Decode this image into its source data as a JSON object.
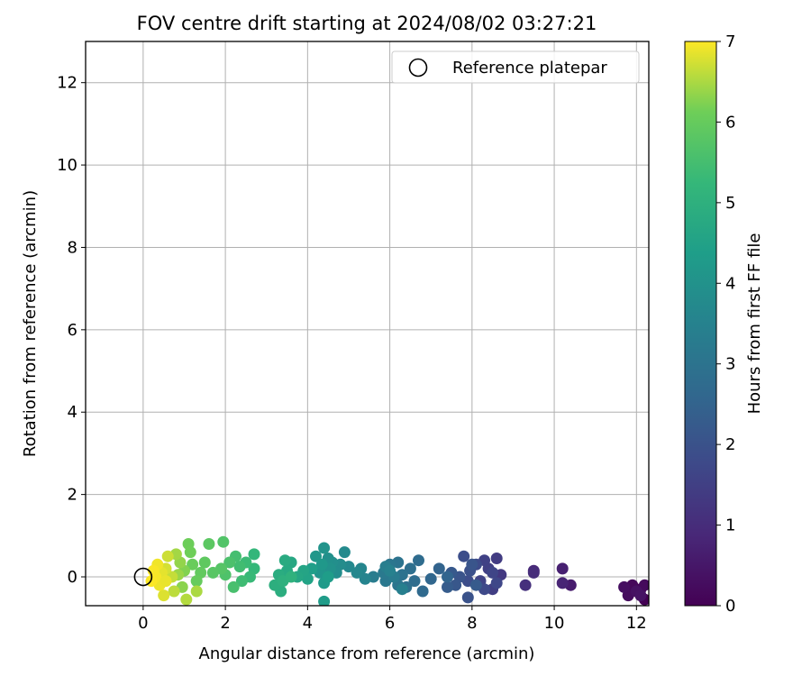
{
  "chart_data": {
    "type": "scatter",
    "title": "FOV centre drift starting at 2024/08/02 03:27:21",
    "xlabel": "Angular distance from reference (arcmin)",
    "ylabel": "Rotation from reference (arcmin)",
    "xlim": [
      -1.4,
      12.3
    ],
    "ylim": [
      -0.7,
      13.0
    ],
    "xticks": [
      "0",
      "2",
      "4",
      "6",
      "8",
      "10",
      "12"
    ],
    "yticks": [
      "0",
      "2",
      "4",
      "6",
      "8",
      "10",
      "12"
    ],
    "grid": true,
    "legend": {
      "placement": "top-right",
      "entries": [
        "Reference platepar"
      ]
    },
    "reference_point": {
      "x": 0,
      "y": 0
    },
    "colorbar": {
      "label": "Hours from first FF file",
      "colormap": "viridis",
      "range": [
        0,
        7
      ],
      "ticks": [
        "0",
        "1",
        "2",
        "3",
        "4",
        "5",
        "6",
        "7"
      ]
    },
    "points": [
      [
        12.2,
        -0.55,
        0.0
      ],
      [
        12.1,
        -0.3,
        0.1
      ],
      [
        11.9,
        -0.2,
        0.15
      ],
      [
        12.2,
        -0.2,
        0.2
      ],
      [
        11.8,
        -0.45,
        0.25
      ],
      [
        11.7,
        -0.25,
        0.3
      ],
      [
        12.0,
        -0.35,
        0.35
      ],
      [
        12.1,
        -0.45,
        0.4
      ],
      [
        10.4,
        -0.2,
        0.6
      ],
      [
        10.2,
        0.2,
        0.7
      ],
      [
        10.2,
        -0.15,
        0.8
      ],
      [
        9.5,
        0.15,
        0.9
      ],
      [
        9.5,
        0.1,
        1.0
      ],
      [
        9.3,
        -0.2,
        1.1
      ],
      [
        8.7,
        0.05,
        1.3
      ],
      [
        8.6,
        0.45,
        1.4
      ],
      [
        8.5,
        -0.3,
        1.45
      ],
      [
        8.4,
        0.2,
        1.5
      ],
      [
        8.3,
        0.4,
        1.55
      ],
      [
        8.2,
        -0.1,
        1.6
      ],
      [
        8.5,
        0.1,
        1.65
      ],
      [
        8.6,
        -0.15,
        1.7
      ],
      [
        8.3,
        -0.3,
        1.75
      ],
      [
        8.1,
        0.3,
        1.8
      ],
      [
        7.9,
        -0.1,
        1.85
      ],
      [
        7.8,
        0.5,
        1.9
      ],
      [
        7.95,
        0.15,
        1.95
      ],
      [
        7.9,
        -0.5,
        2.0
      ],
      [
        7.7,
        0.0,
        2.05
      ],
      [
        8.0,
        0.3,
        2.1
      ],
      [
        7.6,
        -0.2,
        2.15
      ],
      [
        7.5,
        0.1,
        2.2
      ],
      [
        8.1,
        -0.2,
        2.25
      ],
      [
        7.4,
        -0.25,
        2.3
      ],
      [
        7.2,
        0.2,
        2.5
      ],
      [
        7.4,
        0.0,
        2.55
      ],
      [
        7.0,
        -0.05,
        2.6
      ],
      [
        6.8,
        -0.35,
        2.7
      ],
      [
        6.7,
        0.4,
        2.75
      ],
      [
        6.6,
        -0.1,
        2.8
      ],
      [
        6.5,
        0.2,
        2.85
      ],
      [
        6.4,
        -0.25,
        2.9
      ],
      [
        6.3,
        0.05,
        2.95
      ],
      [
        6.2,
        0.35,
        3.0
      ],
      [
        6.2,
        -0.2,
        3.05
      ],
      [
        6.0,
        0.3,
        3.1
      ],
      [
        5.9,
        -0.1,
        3.15
      ],
      [
        5.85,
        0.1,
        3.2
      ],
      [
        6.1,
        0.0,
        3.25
      ],
      [
        5.6,
        0.0,
        3.3
      ],
      [
        5.9,
        0.25,
        3.35
      ],
      [
        6.3,
        -0.3,
        3.4
      ],
      [
        6.0,
        0.15,
        3.45
      ],
      [
        5.4,
        -0.05,
        3.55
      ],
      [
        5.3,
        0.2,
        3.6
      ],
      [
        5.2,
        0.1,
        3.65
      ],
      [
        5.0,
        0.25,
        3.7
      ],
      [
        4.9,
        0.6,
        3.75
      ],
      [
        4.8,
        0.3,
        3.8
      ],
      [
        4.7,
        0.1,
        3.85
      ],
      [
        4.6,
        0.35,
        3.9
      ],
      [
        4.5,
        0.45,
        3.95
      ],
      [
        4.55,
        0.2,
        4.0
      ],
      [
        4.4,
        0.7,
        4.05
      ],
      [
        4.3,
        0.1,
        4.1
      ],
      [
        4.2,
        0.5,
        4.15
      ],
      [
        4.35,
        0.3,
        4.2
      ],
      [
        4.4,
        -0.15,
        4.25
      ],
      [
        4.4,
        -0.6,
        4.3
      ],
      [
        4.5,
        0.0,
        4.35
      ],
      [
        4.1,
        0.2,
        4.4
      ],
      [
        4.0,
        -0.05,
        4.55
      ],
      [
        3.9,
        0.15,
        4.6
      ],
      [
        3.75,
        0.0,
        4.65
      ],
      [
        3.6,
        0.35,
        4.7
      ],
      [
        3.5,
        0.15,
        4.75
      ],
      [
        3.45,
        0.4,
        4.8
      ],
      [
        3.3,
        0.05,
        4.85
      ],
      [
        3.35,
        -0.35,
        4.9
      ],
      [
        3.2,
        -0.2,
        4.95
      ],
      [
        3.4,
        -0.1,
        5.0
      ],
      [
        3.6,
        0.0,
        5.05
      ],
      [
        2.7,
        0.55,
        5.2
      ],
      [
        2.7,
        0.2,
        5.25
      ],
      [
        2.6,
        0.0,
        5.3
      ],
      [
        2.5,
        0.35,
        5.35
      ],
      [
        2.4,
        -0.1,
        5.4
      ],
      [
        2.35,
        0.25,
        5.45
      ],
      [
        2.25,
        0.5,
        5.5
      ],
      [
        2.2,
        -0.25,
        5.55
      ],
      [
        2.1,
        0.35,
        5.6
      ],
      [
        2.0,
        0.05,
        5.65
      ],
      [
        1.95,
        0.85,
        5.7
      ],
      [
        1.9,
        0.2,
        5.75
      ],
      [
        1.7,
        0.1,
        5.8
      ],
      [
        1.6,
        0.8,
        5.85
      ],
      [
        1.5,
        0.35,
        5.9
      ],
      [
        1.4,
        0.1,
        5.95
      ],
      [
        1.3,
        -0.1,
        6.0
      ],
      [
        1.2,
        0.3,
        6.05
      ],
      [
        1.1,
        0.8,
        6.1
      ],
      [
        1.15,
        0.6,
        6.12
      ],
      [
        1.0,
        0.15,
        6.25
      ],
      [
        0.95,
        -0.25,
        6.3
      ],
      [
        0.9,
        0.35,
        6.35
      ],
      [
        0.85,
        0.05,
        6.4
      ],
      [
        0.8,
        0.55,
        6.45
      ],
      [
        1.3,
        -0.35,
        6.5
      ],
      [
        1.05,
        -0.55,
        6.55
      ],
      [
        0.75,
        -0.35,
        6.6
      ],
      [
        0.7,
        0.0,
        6.65
      ],
      [
        0.6,
        0.5,
        6.7
      ],
      [
        0.55,
        0.2,
        6.75
      ],
      [
        0.5,
        -0.45,
        6.8
      ],
      [
        0.45,
        0.1,
        6.85
      ],
      [
        0.4,
        -0.2,
        6.9
      ],
      [
        0.35,
        0.3,
        6.92
      ],
      [
        0.3,
        0.0,
        6.95
      ],
      [
        0.25,
        0.15,
        6.97
      ],
      [
        0.2,
        -0.1,
        6.99
      ],
      [
        0.55,
        -0.1,
        6.88
      ]
    ]
  }
}
